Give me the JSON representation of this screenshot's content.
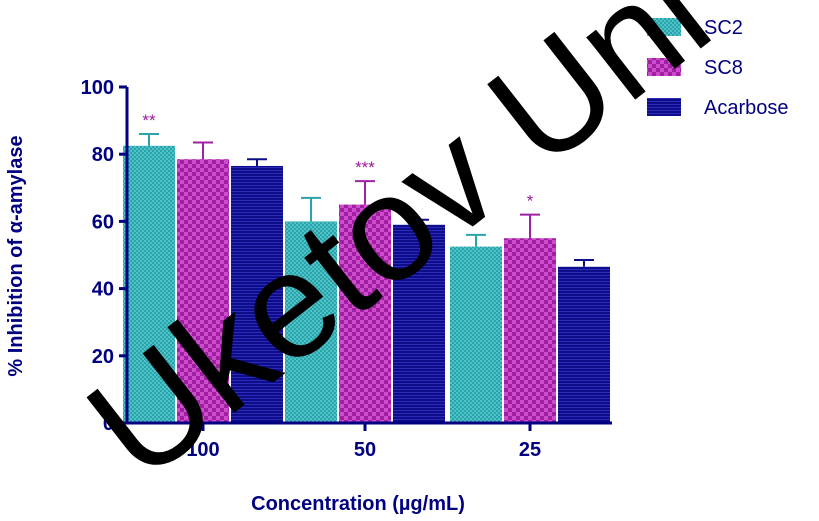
{
  "chart_data": {
    "type": "bar",
    "xlabel": "Concentration (µg/mL)",
    "ylabel": "% Inhibition of α-amylase",
    "ylim": [
      0,
      100
    ],
    "yticks": [
      "0",
      "20",
      "40",
      "60",
      "80",
      "100"
    ],
    "categories": [
      "100",
      "50",
      "25"
    ],
    "series": [
      {
        "name": "SC2",
        "values": [
          82.5,
          60,
          52.5
        ],
        "errors": [
          3.5,
          7,
          3.5
        ],
        "color": "#2aa3aa"
      },
      {
        "name": "SC8",
        "values": [
          78.5,
          65,
          55
        ],
        "errors": [
          5,
          7,
          7
        ],
        "color": "#a01fa3"
      },
      {
        "name": "Acarbose",
        "values": [
          76.5,
          59,
          46.5
        ],
        "errors": [
          2,
          1.5,
          2
        ],
        "color": "#0d0d8a"
      }
    ],
    "annotations": [
      {
        "text": "**",
        "category": "100",
        "series": "SC2"
      },
      {
        "text": "***",
        "category": "50",
        "series": "SC8"
      },
      {
        "text": "*",
        "category": "25",
        "series": "SC8"
      }
    ],
    "legend_position": "top-right",
    "grid": false
  },
  "watermark": "Uketov Uni",
  "colors": {
    "axis": "#000080",
    "annotation": "#9c1b9c"
  }
}
